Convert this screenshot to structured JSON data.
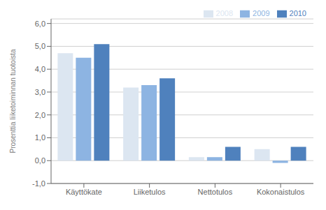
{
  "chart_data": {
    "type": "bar",
    "ylabel": "Prosenttia liiketoiminnan tuotoista",
    "categories": [
      "Käyttökate",
      "Liiketulos",
      "Nettotulos",
      "Kokonaistulos"
    ],
    "series": [
      {
        "name": "2008",
        "color": "#dce6f1",
        "values": [
          4.7,
          3.2,
          0.15,
          0.5
        ]
      },
      {
        "name": "2009",
        "color": "#8db4e2",
        "values": [
          4.5,
          3.3,
          0.15,
          -0.1
        ]
      },
      {
        "name": "2010",
        "color": "#4f81bd",
        "values": [
          5.1,
          3.6,
          0.6,
          0.6
        ]
      }
    ],
    "ylim": [
      -1.0,
      6.2
    ],
    "yticks": [
      {
        "value": -1.0,
        "label": "-1,0"
      },
      {
        "value": 0.0,
        "label": "0,0"
      },
      {
        "value": 1.0,
        "label": "1,0"
      },
      {
        "value": 2.0,
        "label": "2,0"
      },
      {
        "value": 3.0,
        "label": "3,0"
      },
      {
        "value": 4.0,
        "label": "4,0"
      },
      {
        "value": 5.0,
        "label": "5,0"
      },
      {
        "value": 6.0,
        "label": "6,0"
      }
    ],
    "grid": true,
    "legend": "upper right"
  }
}
